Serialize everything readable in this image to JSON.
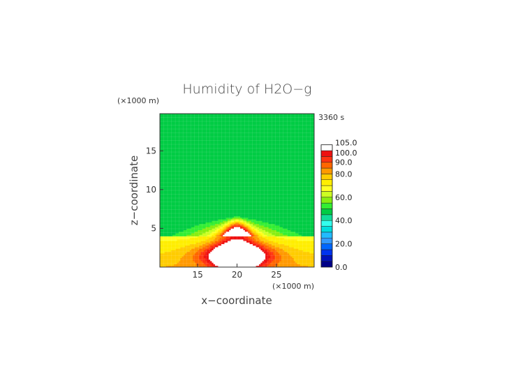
{
  "chart_data": {
    "type": "heatmap",
    "title": "Humidity of H2O−g",
    "time_label": "3360 s",
    "xlabel": "x−coordinate",
    "ylabel": "z−coordinate",
    "x_unit": "(×1000 m)",
    "z_unit": "(×1000 m)",
    "xlim": [
      10.2,
      29.8
    ],
    "zlim": [
      0,
      19.8
    ],
    "x_ticks": [
      15,
      20,
      25
    ],
    "z_ticks": [
      5,
      10,
      15
    ],
    "background_value": 45,
    "boundary_layer_top_km": 4,
    "plume_center_x_km": 20,
    "plume_top_km": 6.6,
    "colorbar": {
      "labels": [
        "105.0",
        "100.0",
        "90.0",
        "80.0",
        "60.0",
        "40.0",
        "20.0",
        "0.0"
      ],
      "levels": [
        0,
        5,
        10,
        15,
        20,
        25,
        30,
        35,
        40,
        45,
        50,
        55,
        60,
        65,
        70,
        75,
        80,
        85,
        90,
        95,
        100,
        105
      ],
      "colors": [
        "#000088",
        "#0011bb",
        "#0033ee",
        "#0066ff",
        "#3399ff",
        "#22bbff",
        "#00dddd",
        "#33ffee",
        "#11dd99",
        "#00cc44",
        "#33ee33",
        "#88ee11",
        "#ccff22",
        "#ffff22",
        "#ffee00",
        "#ffcc00",
        "#ff9900",
        "#ff6600",
        "#ff3311",
        "#ee1111",
        "#ffffff"
      ]
    }
  }
}
